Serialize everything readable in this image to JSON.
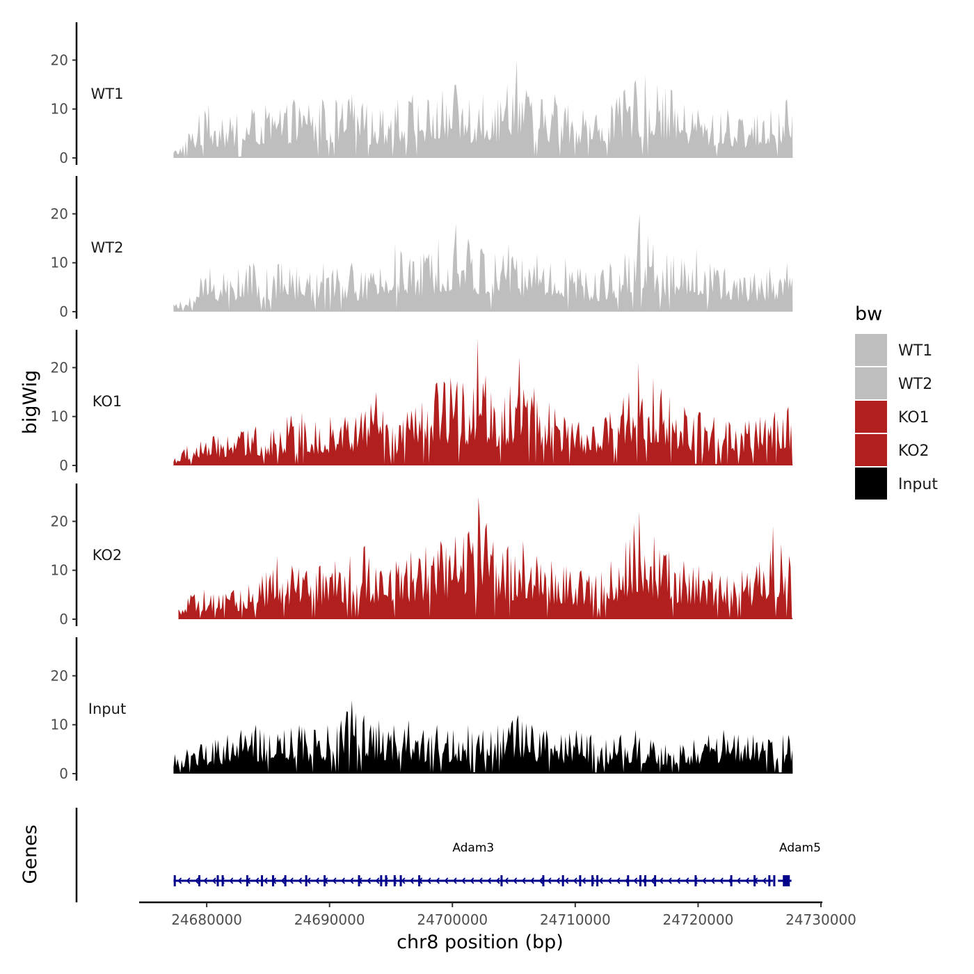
{
  "chart_data": {
    "type": "area",
    "title": "",
    "ylabel": "bigWig",
    "xlabel": "chr8 position (bp)",
    "genes_label": "Genes",
    "xlim": [
      24674500,
      24730000
    ],
    "ylim": [
      0,
      28
    ],
    "y_ticks": [
      "0",
      "10",
      "20"
    ],
    "x_ticks": [
      {
        "value": 24680000,
        "label": "24680000"
      },
      {
        "value": 24690000,
        "label": "24690000"
      },
      {
        "value": 24700000,
        "label": "24700000"
      },
      {
        "value": 24710000,
        "label": "24710000"
      },
      {
        "value": 24720000,
        "label": "24720000"
      },
      {
        "value": 24730000,
        "label": "24730000"
      }
    ],
    "data_range": [
      24677300,
      24727700
    ],
    "legend": {
      "title": "bw",
      "position": "right",
      "entries": [
        {
          "label": "WT1",
          "color": "#bebebe"
        },
        {
          "label": "WT2",
          "color": "#bebebe"
        },
        {
          "label": "KO1",
          "color": "#b21f1f"
        },
        {
          "label": "KO2",
          "color": "#b21f1f"
        },
        {
          "label": "Input",
          "color": "#000000"
        }
      ]
    },
    "series": [
      {
        "name": "WT1",
        "color": "#bebebe",
        "peaks": [
          [
            24677400,
            1.5
          ],
          [
            24678500,
            5
          ],
          [
            24679400,
            9
          ],
          [
            24680200,
            11
          ],
          [
            24681300,
            8
          ],
          [
            24682500,
            9
          ],
          [
            24683700,
            10
          ],
          [
            24684800,
            11
          ],
          [
            24686000,
            10
          ],
          [
            24687100,
            12
          ],
          [
            24688300,
            11
          ],
          [
            24689400,
            12
          ],
          [
            24690500,
            12
          ],
          [
            24691800,
            13
          ],
          [
            24693000,
            11
          ],
          [
            24694300,
            10
          ],
          [
            24695600,
            12
          ],
          [
            24696800,
            13
          ],
          [
            24698000,
            12
          ],
          [
            24699200,
            14
          ],
          [
            24700300,
            15
          ],
          [
            24701400,
            12
          ],
          [
            24702500,
            13
          ],
          [
            24703700,
            12
          ],
          [
            24704500,
            15
          ],
          [
            24705200,
            20
          ],
          [
            24706000,
            14
          ],
          [
            24707200,
            12
          ],
          [
            24708300,
            13
          ],
          [
            24709400,
            11
          ],
          [
            24710600,
            10
          ],
          [
            24711700,
            9
          ],
          [
            24712900,
            11
          ],
          [
            24714000,
            14
          ],
          [
            24714900,
            16
          ],
          [
            24715700,
            17
          ],
          [
            24716700,
            15
          ],
          [
            24717800,
            14
          ],
          [
            24718900,
            11
          ],
          [
            24720000,
            10
          ],
          [
            24721200,
            9
          ],
          [
            24722400,
            10
          ],
          [
            24723600,
            8
          ],
          [
            24724800,
            9
          ],
          [
            24725900,
            10
          ],
          [
            24727200,
            12
          ]
        ]
      },
      {
        "name": "WT2",
        "color": "#bebebe",
        "peaks": [
          [
            24677300,
            1.5
          ],
          [
            24678600,
            3
          ],
          [
            24679500,
            7
          ],
          [
            24680300,
            9
          ],
          [
            24681400,
            8
          ],
          [
            24682600,
            9
          ],
          [
            24683800,
            10
          ],
          [
            24684900,
            9
          ],
          [
            24686100,
            10
          ],
          [
            24687300,
            9
          ],
          [
            24688400,
            8
          ],
          [
            24689500,
            10
          ],
          [
            24690600,
            9
          ],
          [
            24691800,
            10
          ],
          [
            24692900,
            8
          ],
          [
            24694100,
            9
          ],
          [
            24695300,
            14
          ],
          [
            24696500,
            11
          ],
          [
            24697700,
            12
          ],
          [
            24698900,
            15
          ],
          [
            24700300,
            18
          ],
          [
            24701300,
            15
          ],
          [
            24702400,
            13
          ],
          [
            24703500,
            12
          ],
          [
            24704600,
            14
          ],
          [
            24705700,
            11
          ],
          [
            24706900,
            12
          ],
          [
            24708000,
            10
          ],
          [
            24709200,
            11
          ],
          [
            24710400,
            9
          ],
          [
            24711600,
            8
          ],
          [
            24712800,
            10
          ],
          [
            24714000,
            12
          ],
          [
            24715200,
            20
          ],
          [
            24716400,
            14
          ],
          [
            24717500,
            12
          ],
          [
            24718700,
            11
          ],
          [
            24719900,
            13
          ],
          [
            24721000,
            10
          ],
          [
            24722200,
            9
          ],
          [
            24723400,
            7
          ],
          [
            24724600,
            8
          ],
          [
            24725800,
            9
          ],
          [
            24727200,
            10
          ]
        ]
      },
      {
        "name": "KO1",
        "color": "#b21f1f",
        "peaks": [
          [
            24677400,
            1.5
          ],
          [
            24678400,
            4
          ],
          [
            24679500,
            5
          ],
          [
            24680600,
            6
          ],
          [
            24681700,
            6
          ],
          [
            24682800,
            7
          ],
          [
            24684000,
            8
          ],
          [
            24685200,
            7
          ],
          [
            24686500,
            10
          ],
          [
            24687700,
            11
          ],
          [
            24688900,
            9
          ],
          [
            24690100,
            10
          ],
          [
            24691300,
            10
          ],
          [
            24692600,
            11
          ],
          [
            24693800,
            15
          ],
          [
            24695100,
            8
          ],
          [
            24696300,
            11
          ],
          [
            24697500,
            13
          ],
          [
            24698700,
            17
          ],
          [
            24699900,
            18
          ],
          [
            24700800,
            17
          ],
          [
            24701700,
            16
          ],
          [
            24702100,
            26
          ],
          [
            24703100,
            15
          ],
          [
            24704300,
            14
          ],
          [
            24705500,
            22
          ],
          [
            24706700,
            16
          ],
          [
            24707900,
            13
          ],
          [
            24709100,
            10
          ],
          [
            24710300,
            9
          ],
          [
            24711500,
            8
          ],
          [
            24712800,
            11
          ],
          [
            24713900,
            14
          ],
          [
            24715100,
            21
          ],
          [
            24716400,
            18
          ],
          [
            24717700,
            14
          ],
          [
            24718900,
            12
          ],
          [
            24720100,
            11
          ],
          [
            24721300,
            10
          ],
          [
            24722500,
            9
          ],
          [
            24723800,
            9
          ],
          [
            24725000,
            10
          ],
          [
            24726300,
            11
          ],
          [
            24727400,
            12
          ]
        ]
      },
      {
        "name": "KO2",
        "color": "#b21f1f",
        "peaks": [
          [
            24677600,
            2
          ],
          [
            24678700,
            5
          ],
          [
            24679800,
            6
          ],
          [
            24681000,
            5
          ],
          [
            24682200,
            6
          ],
          [
            24683400,
            7
          ],
          [
            24684500,
            9
          ],
          [
            24685700,
            13
          ],
          [
            24686900,
            11
          ],
          [
            24688100,
            10
          ],
          [
            24689300,
            11
          ],
          [
            24690500,
            12
          ],
          [
            24691700,
            13
          ],
          [
            24692900,
            15
          ],
          [
            24694200,
            10
          ],
          [
            24695400,
            12
          ],
          [
            24696600,
            14
          ],
          [
            24697800,
            15
          ],
          [
            24699000,
            16
          ],
          [
            24700200,
            17
          ],
          [
            24701300,
            18
          ],
          [
            24702100,
            25
          ],
          [
            24703300,
            16
          ],
          [
            24704500,
            15
          ],
          [
            24705700,
            16
          ],
          [
            24706900,
            13
          ],
          [
            24708100,
            12
          ],
          [
            24709300,
            11
          ],
          [
            24710500,
            10
          ],
          [
            24711700,
            9
          ],
          [
            24712900,
            12
          ],
          [
            24714100,
            16
          ],
          [
            24715200,
            22
          ],
          [
            24716400,
            17
          ],
          [
            24717600,
            14
          ],
          [
            24718800,
            12
          ],
          [
            24720000,
            11
          ],
          [
            24721200,
            10
          ],
          [
            24722400,
            9
          ],
          [
            24723600,
            10
          ],
          [
            24724800,
            11
          ],
          [
            24726100,
            19
          ],
          [
            24727400,
            13
          ]
        ]
      },
      {
        "name": "Input",
        "color": "#000000",
        "peaks": [
          [
            24677400,
            4
          ],
          [
            24678400,
            5
          ],
          [
            24679500,
            6
          ],
          [
            24680700,
            7
          ],
          [
            24681700,
            8
          ],
          [
            24682800,
            9
          ],
          [
            24684000,
            10
          ],
          [
            24685100,
            8
          ],
          [
            24686300,
            9
          ],
          [
            24687500,
            10
          ],
          [
            24688700,
            9
          ],
          [
            24689800,
            10
          ],
          [
            24690900,
            11
          ],
          [
            24691800,
            15
          ],
          [
            24692800,
            12
          ],
          [
            24694000,
            11
          ],
          [
            24695200,
            10
          ],
          [
            24696400,
            11
          ],
          [
            24697600,
            9
          ],
          [
            24698800,
            10
          ],
          [
            24700100,
            9
          ],
          [
            24701300,
            10
          ],
          [
            24702500,
            9
          ],
          [
            24703700,
            10
          ],
          [
            24704900,
            11
          ],
          [
            24705400,
            12
          ],
          [
            24706500,
            10
          ],
          [
            24707700,
            9
          ],
          [
            24708900,
            8
          ],
          [
            24710100,
            9
          ],
          [
            24711300,
            8
          ],
          [
            24712500,
            7
          ],
          [
            24713700,
            8
          ],
          [
            24714900,
            9
          ],
          [
            24716100,
            7
          ],
          [
            24717300,
            6
          ],
          [
            24718500,
            6
          ],
          [
            24719700,
            7
          ],
          [
            24720900,
            8
          ],
          [
            24722100,
            9
          ],
          [
            24723300,
            8
          ],
          [
            24724500,
            8
          ],
          [
            24725700,
            7
          ],
          [
            24726900,
            8
          ]
        ]
      }
    ],
    "genes": {
      "color": "#00008b",
      "strand": "-",
      "items": [
        {
          "name": "Adam3",
          "start": 24677300,
          "end": 24726100,
          "label_pos": 24701700
        },
        {
          "name": "Adam5",
          "start": 24726500,
          "end": 24727600,
          "label_pos": 24728300
        }
      ],
      "exons": [
        24677400,
        24679400,
        24680900,
        24681300,
        24683300,
        24684500,
        24685400,
        24686400,
        24688100,
        24689600,
        24692400,
        24694200,
        24694600,
        24695300,
        24695800,
        24697300,
        24704000,
        24707400,
        24709000,
        24710400,
        24711400,
        24711800,
        24714300,
        24715300,
        24715700,
        24716500,
        24719800,
        24722700,
        24724600,
        24725800,
        24726200
      ]
    }
  }
}
